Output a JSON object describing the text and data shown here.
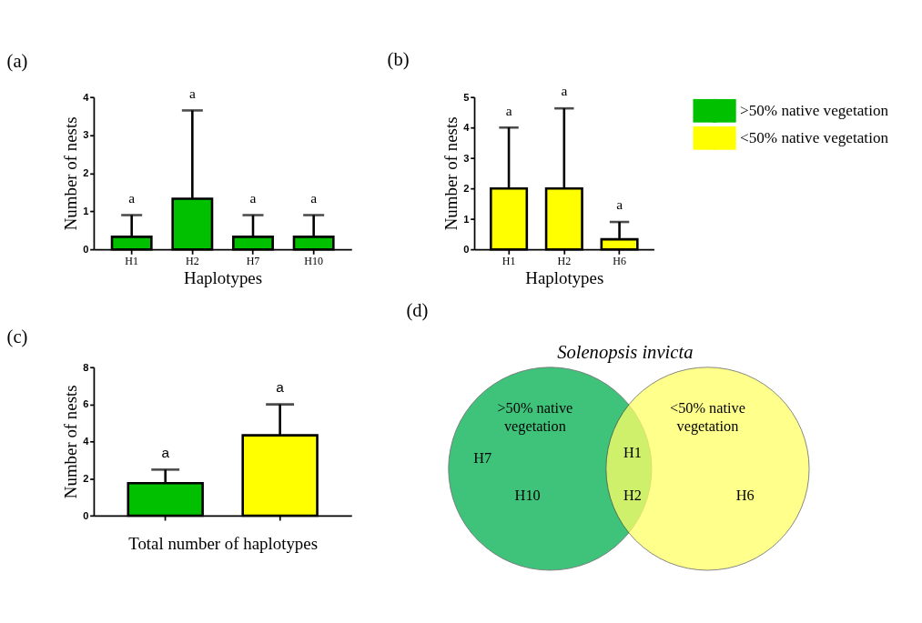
{
  "chart_data": [
    {
      "type": "bar",
      "title": "(a)",
      "xlabel": "Haplotypes",
      "ylabel": "Number of nests",
      "categories": [
        "H1",
        "H2",
        "H7",
        "H10"
      ],
      "series": [
        {
          "name": ">50% native vegetation",
          "color": "#00c000",
          "values": [
            0.33,
            1.33,
            0.33,
            0.33
          ],
          "errors": [
            [
              0.33,
              0.9
            ],
            [
              1.33,
              3.65
            ],
            [
              0.33,
              0.9
            ],
            [
              0.33,
              0.9
            ]
          ]
        }
      ],
      "ylim": [
        0,
        4
      ],
      "yticks": [
        0,
        1,
        2,
        3,
        4
      ],
      "grid": false,
      "legend": "right",
      "annotations": [
        "a",
        "a",
        "a",
        "a"
      ]
    },
    {
      "type": "bar",
      "title": "(b)",
      "xlabel": "Haplotypes",
      "ylabel": "Number of nests",
      "categories": [
        "H1",
        "H2",
        "H6"
      ],
      "series": [
        {
          "name": "<50% native vegetation",
          "color": "#ffff00",
          "values": [
            2,
            2,
            0.33
          ],
          "errors": [
            [
              2,
              4.0
            ],
            [
              2,
              4.63
            ],
            [
              0.33,
              0.9
            ]
          ]
        }
      ],
      "ylim": [
        0,
        5
      ],
      "yticks": [
        0,
        1,
        2,
        3,
        4,
        5
      ],
      "grid": false,
      "legend": "right",
      "annotations": [
        "a",
        "a",
        "a"
      ]
    },
    {
      "type": "bar",
      "title": "(c)",
      "xlabel": "Total number of haplotypes",
      "ylabel": "Number of nests",
      "categories": [
        null,
        null
      ],
      "values": [
        1.75,
        4.33
      ],
      "colors": [
        "#00c000",
        "#ffff00"
      ],
      "errors": [
        [
          1.75,
          2.48
        ],
        [
          4.33,
          6.0
        ]
      ],
      "ylim": [
        0,
        8
      ],
      "yticks": [
        0,
        2,
        4,
        6,
        8
      ],
      "grid": false,
      "annotations": [
        "a",
        "a"
      ]
    },
    {
      "type": "other",
      "title": "(d)",
      "subtitle": "Solenopsis invicta",
      "colors": [
        "#00b050",
        "#ffff66"
      ],
      "annotations": [
        ">50% native vegetation",
        "<50% native vegetation",
        "H7",
        "H10",
        "H1",
        "H2",
        "H6"
      ]
    }
  ]
}
